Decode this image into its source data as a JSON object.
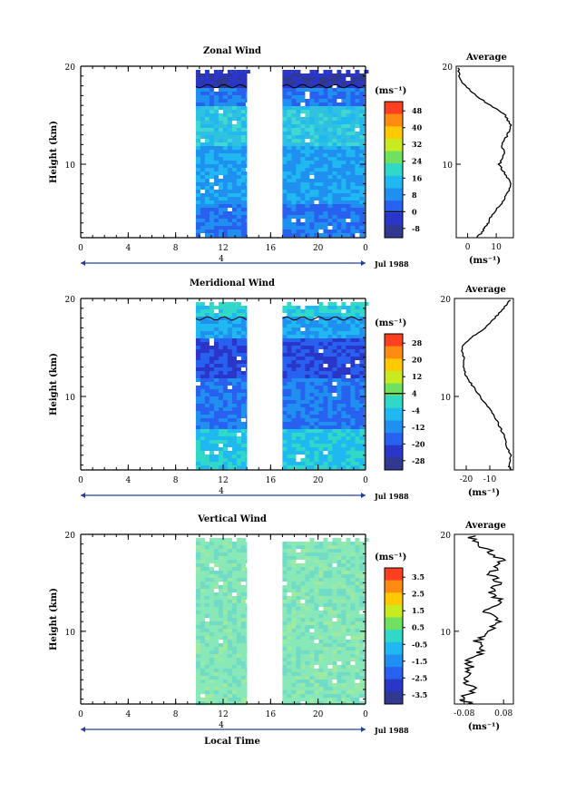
{
  "chart_data": [
    {
      "type": "heatmap",
      "title": "Zonal Wind",
      "ylabel": "Height (km)",
      "y_ticks": [
        "20",
        "10"
      ],
      "y_range": [
        2.5,
        20
      ],
      "x_ticks": [
        "0",
        "4",
        "8",
        "12",
        "16",
        "20",
        "0"
      ],
      "x_range": [
        0,
        24
      ],
      "date_label": "4",
      "month_label": "Jul 1988",
      "colorbar_unit": "(ms⁻¹)",
      "colorbar_ticks": [
        "48",
        "40",
        "32",
        "24",
        "16",
        "8",
        "0",
        "-8"
      ],
      "data_time_ranges": [
        [
          9.7,
          14.0
        ],
        [
          17.0,
          24.0
        ]
      ],
      "profile": {
        "title": "Average",
        "x_ticks": [
          "0",
          "10"
        ],
        "xlim": [
          -4,
          16
        ],
        "xlabel": "(ms⁻¹)",
        "heights": [
          2.5,
          3,
          3.5,
          4,
          5,
          6,
          7,
          8,
          9,
          10,
          11,
          12,
          13,
          14,
          15,
          16,
          17,
          18,
          19,
          20
        ],
        "values": [
          3,
          5,
          6,
          7,
          9,
          12,
          14,
          15,
          13,
          11,
          13,
          12,
          14,
          15,
          13,
          8,
          3,
          -1,
          -3,
          -3
        ]
      }
    },
    {
      "type": "heatmap",
      "title": "Meridional Wind",
      "ylabel": "Height (km)",
      "y_ticks": [
        "20",
        "10"
      ],
      "y_range": [
        2.5,
        20
      ],
      "x_ticks": [
        "0",
        "4",
        "8",
        "12",
        "16",
        "20",
        "0"
      ],
      "x_range": [
        0,
        24
      ],
      "date_label": "4",
      "month_label": "Jul 1988",
      "colorbar_unit": "(ms⁻¹)",
      "colorbar_ticks": [
        "28",
        "20",
        "12",
        "4",
        "-4",
        "-12",
        "-20",
        "-28"
      ],
      "data_time_ranges": [
        [
          9.7,
          14.0
        ],
        [
          17.0,
          24.0
        ]
      ],
      "profile": {
        "title": "Average",
        "x_ticks": [
          "-20",
          "-10"
        ],
        "xlim": [
          -25,
          0
        ],
        "xlabel": "(ms⁻¹)",
        "heights": [
          2.5,
          3,
          4,
          5,
          6,
          7,
          8,
          9,
          10,
          11,
          12,
          13,
          14,
          15,
          16,
          17,
          18,
          19,
          20
        ],
        "values": [
          -1,
          -2,
          -1,
          -3,
          -4,
          -6,
          -8,
          -11,
          -14,
          -17,
          -20,
          -21,
          -21,
          -22,
          -18,
          -12,
          -8,
          -4,
          -1
        ]
      }
    },
    {
      "type": "heatmap",
      "title": "Vertical Wind",
      "ylabel": "Height (km)",
      "xlabel": "Local Time",
      "y_ticks": [
        "20",
        "10"
      ],
      "y_range": [
        2.5,
        20
      ],
      "x_ticks": [
        "0",
        "4",
        "8",
        "12",
        "16",
        "20",
        "0"
      ],
      "x_range": [
        0,
        24
      ],
      "date_label": "4",
      "month_label": "Jul 1988",
      "colorbar_unit": "(ms⁻¹)",
      "colorbar_ticks": [
        "3.5",
        "2.5",
        "1.5",
        "0.5",
        "-0.5",
        "-1.5",
        "-2.5",
        "-3.5"
      ],
      "data_time_ranges": [
        [
          9.7,
          14.0
        ],
        [
          17.0,
          24.0
        ]
      ],
      "profile": {
        "title": "Average",
        "x_ticks": [
          "-0.08",
          "0.08"
        ],
        "xlim": [
          -0.12,
          0.12
        ],
        "xlabel": "(ms⁻¹)",
        "heights": [
          2.5,
          3,
          4,
          5,
          6,
          7,
          8,
          9,
          10,
          11,
          12,
          13,
          14,
          15,
          16,
          17,
          18,
          19,
          20
        ],
        "values": [
          -0.06,
          -0.09,
          -0.04,
          -0.08,
          -0.05,
          -0.07,
          0.0,
          -0.03,
          0.02,
          0.05,
          0.01,
          0.07,
          0.03,
          0.06,
          0.02,
          0.08,
          0.04,
          -0.02,
          -0.06
        ]
      }
    }
  ]
}
